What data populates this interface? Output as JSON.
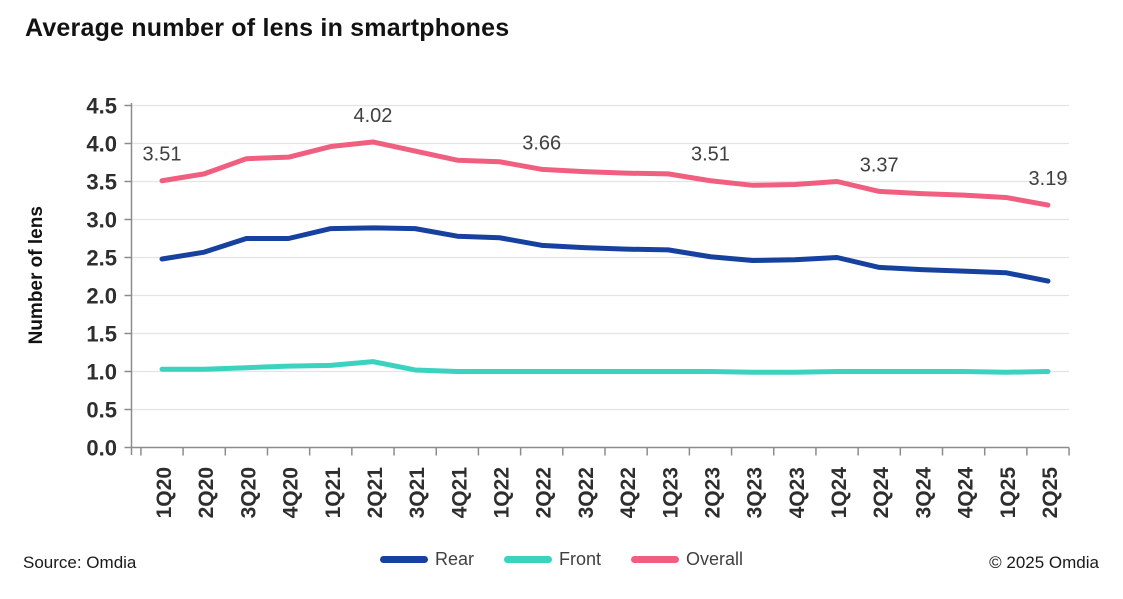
{
  "page": {
    "title": "Average number of lens in smartphones"
  },
  "chart_data": {
    "type": "line",
    "title": "Average number of lens in smartphones",
    "xlabel": "",
    "ylabel": "Number of lens",
    "ylim": [
      0.0,
      4.5
    ],
    "grid": true,
    "legend_position": "bottom-center",
    "y_ticks": [
      "0.0",
      "0.5",
      "1.0",
      "1.5",
      "2.0",
      "2.5",
      "3.0",
      "3.5",
      "4.0",
      "4.5"
    ],
    "categories": [
      "1Q20",
      "2Q20",
      "3Q20",
      "4Q20",
      "1Q21",
      "2Q21",
      "3Q21",
      "4Q21",
      "1Q22",
      "2Q22",
      "3Q22",
      "4Q22",
      "1Q23",
      "2Q23",
      "3Q23",
      "4Q23",
      "1Q24",
      "2Q24",
      "3Q24",
      "4Q24",
      "1Q25",
      "2Q25"
    ],
    "series": [
      {
        "name": "Rear",
        "color": "#16419F",
        "values": [
          2.48,
          2.57,
          2.75,
          2.75,
          2.88,
          2.89,
          2.88,
          2.78,
          2.76,
          2.66,
          2.63,
          2.61,
          2.6,
          2.51,
          2.46,
          2.47,
          2.5,
          2.37,
          2.34,
          2.32,
          2.3,
          2.19
        ]
      },
      {
        "name": "Front",
        "color": "#3BD2C0",
        "values": [
          1.03,
          1.03,
          1.05,
          1.07,
          1.08,
          1.13,
          1.02,
          1.0,
          1.0,
          1.0,
          1.0,
          1.0,
          1.0,
          1.0,
          0.99,
          0.99,
          1.0,
          1.0,
          1.0,
          1.0,
          0.99,
          1.0
        ]
      },
      {
        "name": "Overall",
        "color": "#F05F7F",
        "values": [
          3.51,
          3.6,
          3.8,
          3.82,
          3.96,
          4.02,
          3.9,
          3.78,
          3.76,
          3.66,
          3.63,
          3.61,
          3.6,
          3.51,
          3.45,
          3.46,
          3.5,
          3.37,
          3.34,
          3.32,
          3.29,
          3.19
        ],
        "point_labels": [
          {
            "index": 0,
            "text": "3.51"
          },
          {
            "index": 5,
            "text": "4.02"
          },
          {
            "index": 9,
            "text": "3.66"
          },
          {
            "index": 13,
            "text": "3.51"
          },
          {
            "index": 17,
            "text": "3.37"
          },
          {
            "index": 21,
            "text": "3.19"
          }
        ]
      }
    ],
    "colors": {
      "gridline": "#E4E4E4",
      "axis": "#8C8C8C",
      "tick_label": "#2E2E2E",
      "data_label": "#404040",
      "background": "#FFFFFF"
    }
  },
  "footer": {
    "source": "Source: Omdia",
    "copyright": "© 2025 Omdia"
  }
}
